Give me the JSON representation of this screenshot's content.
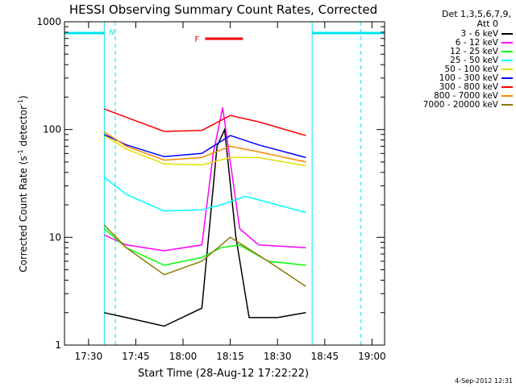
{
  "chart_data": {
    "type": "line",
    "title": "HESSI Observing Summary Count Rates, Corrected",
    "xlabel": "Start Time (28-Aug-12 17:22:22)",
    "ylabel_main": "Corrected Count Rate (s",
    "ylabel_sup1": "-1",
    "ylabel_mid": " detector",
    "ylabel_sup2": "-1",
    "ylabel_end": ")",
    "x_ticks": [
      "17:30",
      "17:45",
      "18:00",
      "18:15",
      "18:30",
      "18:45",
      "19:00"
    ],
    "y_ticks": [
      "1",
      "10",
      "100",
      "1000"
    ],
    "y_scale": "log",
    "ylim": [
      1,
      1000
    ],
    "xlim": [
      "17:22:22",
      "19:04:00"
    ],
    "legend_header_line1": "Det 1,3,5,6,7,9,",
    "legend_header_line2": "Att 0",
    "flag_label": "F",
    "flag_interval": [
      "18:07",
      "18:19"
    ],
    "night_label": "N",
    "night_intervals": [
      [
        "17:22:22",
        "17:35:00"
      ],
      [
        "18:41:00",
        "19:04:00"
      ]
    ],
    "saa_lines": [
      "17:38:30",
      "18:56:30"
    ],
    "series": [
      {
        "name": "3 - 6 keV",
        "color": "#000000",
        "values": [
          [
            17.583,
            2.0
          ],
          [
            17.7,
            1.8
          ],
          [
            17.9,
            1.5
          ],
          [
            18.1,
            2.2
          ],
          [
            18.18,
            70
          ],
          [
            18.22,
            100
          ],
          [
            18.28,
            10
          ],
          [
            18.35,
            1.8
          ],
          [
            18.5,
            1.8
          ],
          [
            18.65,
            2.0
          ]
        ]
      },
      {
        "name": "6 - 12 keV",
        "color": "#ff00ff",
        "values": [
          [
            17.583,
            10.5
          ],
          [
            17.7,
            8.5
          ],
          [
            17.9,
            7.5
          ],
          [
            18.1,
            8.5
          ],
          [
            18.16,
            60
          ],
          [
            18.21,
            160
          ],
          [
            18.3,
            12
          ],
          [
            18.4,
            8.5
          ],
          [
            18.65,
            8.0
          ]
        ]
      },
      {
        "name": "12 - 25 keV",
        "color": "#00ff00",
        "values": [
          [
            17.583,
            12
          ],
          [
            17.7,
            8
          ],
          [
            17.9,
            5.5
          ],
          [
            18.1,
            6.5
          ],
          [
            18.2,
            8
          ],
          [
            18.3,
            8.5
          ],
          [
            18.45,
            6
          ],
          [
            18.65,
            5.5
          ]
        ]
      },
      {
        "name": "25 - 50 keV",
        "color": "#00ffff",
        "values": [
          [
            17.583,
            36
          ],
          [
            17.7,
            25
          ],
          [
            17.9,
            17.5
          ],
          [
            18.1,
            18
          ],
          [
            18.2,
            20
          ],
          [
            18.33,
            24
          ],
          [
            18.5,
            20
          ],
          [
            18.65,
            17
          ]
        ]
      },
      {
        "name": "50 - 100 keV",
        "color": "#e0e000",
        "values": [
          [
            17.583,
            88
          ],
          [
            17.7,
            66
          ],
          [
            17.9,
            48
          ],
          [
            18.1,
            47
          ],
          [
            18.25,
            55
          ],
          [
            18.4,
            55
          ],
          [
            18.65,
            46
          ]
        ]
      },
      {
        "name": "100 - 300 keV",
        "color": "#0000ff",
        "values": [
          [
            17.583,
            90
          ],
          [
            17.7,
            72
          ],
          [
            17.9,
            56
          ],
          [
            18.1,
            60
          ],
          [
            18.25,
            88
          ],
          [
            18.4,
            72
          ],
          [
            18.65,
            55
          ]
        ]
      },
      {
        "name": "300 - 800 keV",
        "color": "#ff0000",
        "values": [
          [
            17.583,
            155
          ],
          [
            17.7,
            130
          ],
          [
            17.9,
            96
          ],
          [
            18.1,
            98
          ],
          [
            18.25,
            135
          ],
          [
            18.4,
            118
          ],
          [
            18.65,
            88
          ]
        ]
      },
      {
        "name": "800 - 7000 keV",
        "color": "#ff8800",
        "values": [
          [
            17.583,
            95
          ],
          [
            17.7,
            70
          ],
          [
            17.9,
            52
          ],
          [
            18.1,
            55
          ],
          [
            18.25,
            70
          ],
          [
            18.4,
            62
          ],
          [
            18.65,
            50
          ]
        ]
      },
      {
        "name": "7000 - 20000 keV",
        "color": "#8b7d00",
        "values": [
          [
            17.583,
            13
          ],
          [
            17.7,
            8
          ],
          [
            17.9,
            4.5
          ],
          [
            18.1,
            6
          ],
          [
            18.25,
            10
          ],
          [
            18.45,
            6
          ],
          [
            18.65,
            3.5
          ]
        ]
      }
    ]
  },
  "timestamp": "4-Sep-2012 12:31"
}
